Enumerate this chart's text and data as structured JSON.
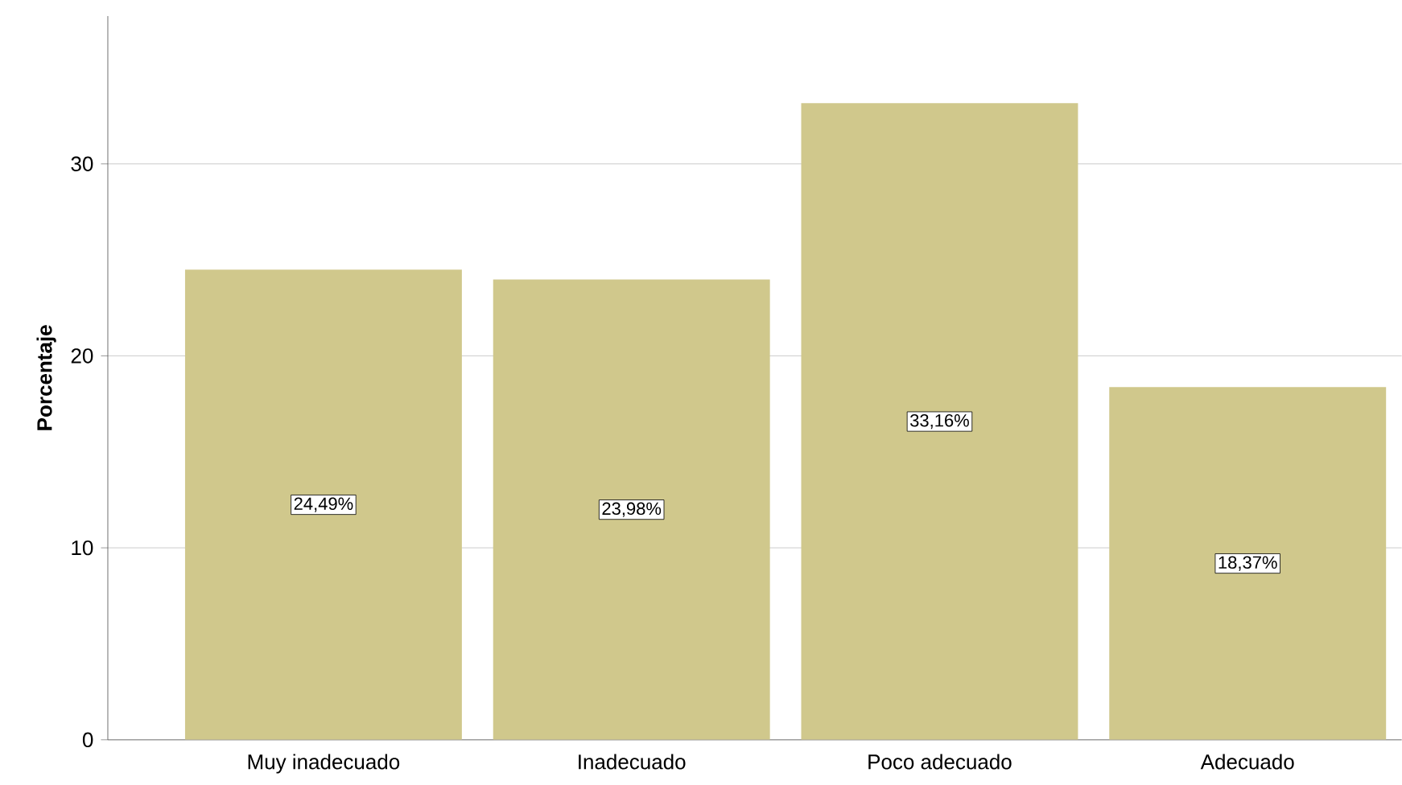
{
  "chart_data": {
    "type": "bar",
    "ylabel": "Porcentaje",
    "categories": [
      "Muy inadecuado",
      "Inadecuado",
      "Poco adecuado",
      "Adecuado"
    ],
    "values": [
      24.49,
      23.98,
      33.16,
      18.37
    ],
    "value_labels": [
      "24,49%",
      "23,98%",
      "33,16%",
      "18,37%"
    ],
    "color": "#d0c88c",
    "ylim": [
      0,
      37.7
    ],
    "yticks": [
      0,
      10,
      20,
      30
    ],
    "grid": "y"
  }
}
